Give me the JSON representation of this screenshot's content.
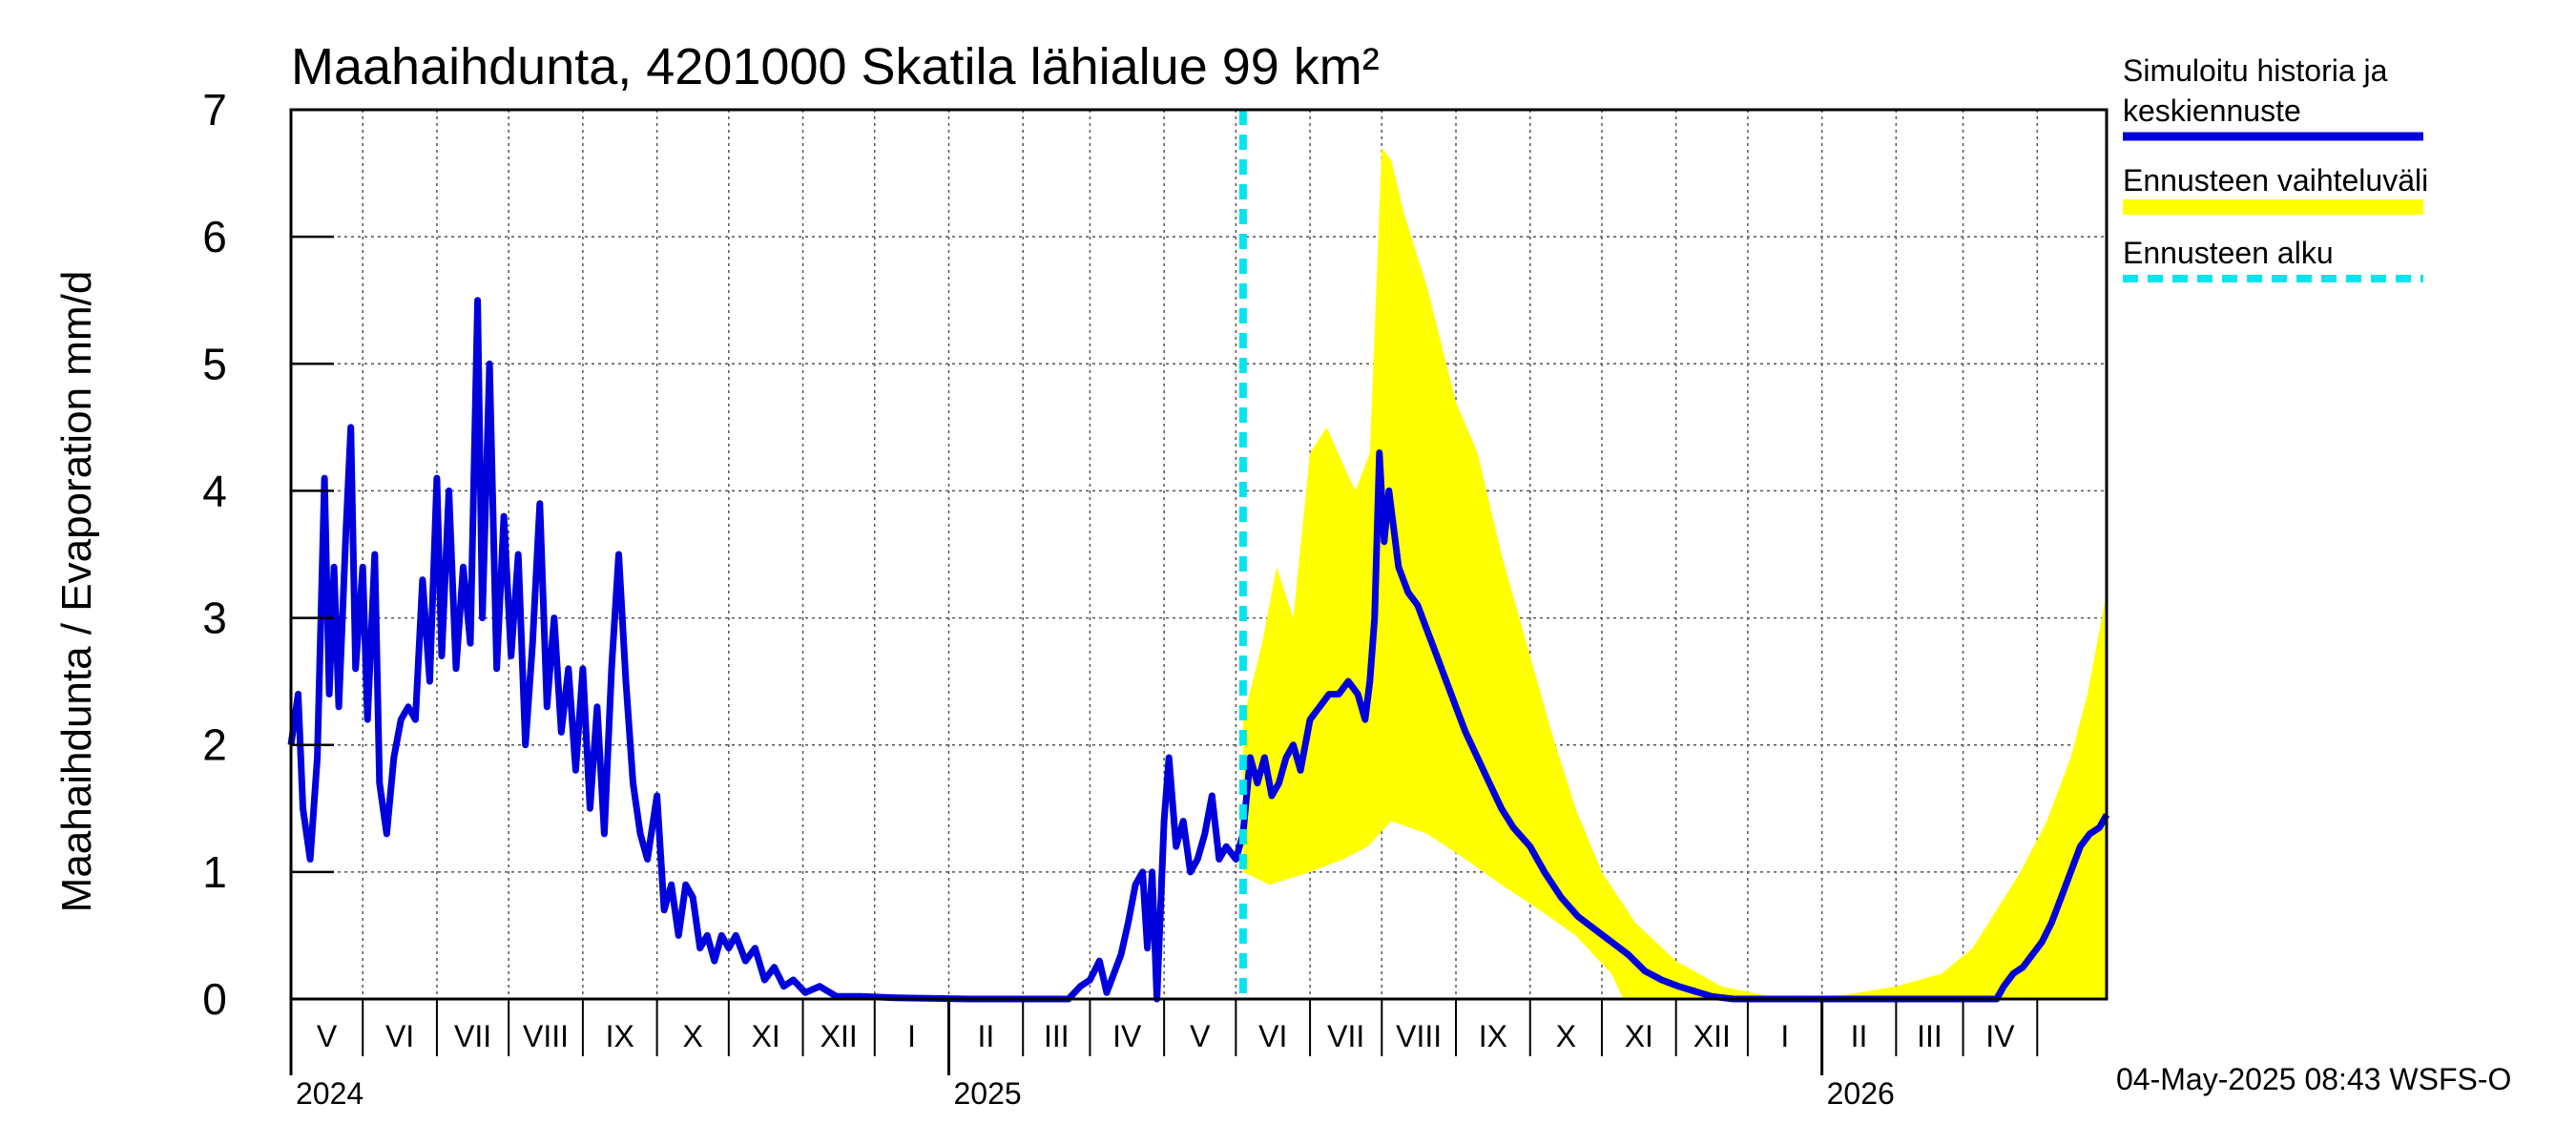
{
  "chart_data": {
    "type": "line",
    "title": "Maahaihdunta, 4201000 Skatila lähialue 99 km²",
    "ylabel": "Maahaihdunta / Evaporation   mm/d",
    "ylim": [
      0,
      7
    ],
    "yticks": [
      "0",
      "1",
      "2",
      "3",
      "4",
      "5",
      "6",
      "7"
    ],
    "x_start": "2024-04-01",
    "x_end": "2026-04-30",
    "months": [
      "V",
      "VI",
      "VII",
      "VIII",
      "IX",
      "X",
      "XI",
      "XII",
      "I",
      "II",
      "III",
      "IV",
      "V",
      "VI",
      "VII",
      "VIII",
      "IX",
      "X",
      "XI",
      "XII",
      "I",
      "II",
      "III",
      "IV"
    ],
    "years": [
      "2024",
      "2025",
      "2026"
    ],
    "forecast_start": "2025-05-04",
    "colors": {
      "history": "#0000dd",
      "band": "#ffff00",
      "forecast_line": "#00e5ee",
      "grid": "#555555"
    },
    "series": [
      {
        "name": "Simuloitu historia ja keskiennuste",
        "points": [
          [
            "2024-04-01",
            2.0
          ],
          [
            "2024-04-04",
            2.4
          ],
          [
            "2024-04-06",
            1.5
          ],
          [
            "2024-04-09",
            1.1
          ],
          [
            "2024-04-12",
            1.9
          ],
          [
            "2024-04-15",
            4.1
          ],
          [
            "2024-04-17",
            2.4
          ],
          [
            "2024-04-19",
            3.4
          ],
          [
            "2024-04-21",
            2.3
          ],
          [
            "2024-04-24",
            3.7
          ],
          [
            "2024-04-26",
            4.5
          ],
          [
            "2024-04-28",
            2.6
          ],
          [
            "2024-05-01",
            3.4
          ],
          [
            "2024-05-03",
            2.2
          ],
          [
            "2024-05-06",
            3.5
          ],
          [
            "2024-05-08",
            1.7
          ],
          [
            "2024-05-11",
            1.3
          ],
          [
            "2024-05-14",
            1.9
          ],
          [
            "2024-05-17",
            2.2
          ],
          [
            "2024-05-20",
            2.3
          ],
          [
            "2024-05-23",
            2.2
          ],
          [
            "2024-05-26",
            3.3
          ],
          [
            "2024-05-29",
            2.5
          ],
          [
            "2024-06-01",
            4.1
          ],
          [
            "2024-06-03",
            2.7
          ],
          [
            "2024-06-06",
            4.0
          ],
          [
            "2024-06-09",
            2.6
          ],
          [
            "2024-06-12",
            3.4
          ],
          [
            "2024-06-15",
            2.8
          ],
          [
            "2024-06-18",
            5.5
          ],
          [
            "2024-06-20",
            3.0
          ],
          [
            "2024-06-23",
            5.0
          ],
          [
            "2024-06-26",
            2.6
          ],
          [
            "2024-06-29",
            3.8
          ],
          [
            "2024-07-02",
            2.7
          ],
          [
            "2024-07-05",
            3.5
          ],
          [
            "2024-07-08",
            2.0
          ],
          [
            "2024-07-11",
            2.8
          ],
          [
            "2024-07-14",
            3.9
          ],
          [
            "2024-07-17",
            2.3
          ],
          [
            "2024-07-20",
            3.0
          ],
          [
            "2024-07-23",
            2.1
          ],
          [
            "2024-07-26",
            2.6
          ],
          [
            "2024-07-29",
            1.8
          ],
          [
            "2024-08-01",
            2.6
          ],
          [
            "2024-08-04",
            1.5
          ],
          [
            "2024-08-07",
            2.3
          ],
          [
            "2024-08-10",
            1.3
          ],
          [
            "2024-08-13",
            2.6
          ],
          [
            "2024-08-16",
            3.5
          ],
          [
            "2024-08-19",
            2.5
          ],
          [
            "2024-08-22",
            1.7
          ],
          [
            "2024-08-25",
            1.3
          ],
          [
            "2024-08-28",
            1.1
          ],
          [
            "2024-09-01",
            1.6
          ],
          [
            "2024-09-04",
            0.7
          ],
          [
            "2024-09-07",
            0.9
          ],
          [
            "2024-09-10",
            0.5
          ],
          [
            "2024-09-13",
            0.9
          ],
          [
            "2024-09-16",
            0.8
          ],
          [
            "2024-09-19",
            0.4
          ],
          [
            "2024-09-22",
            0.5
          ],
          [
            "2024-09-25",
            0.3
          ],
          [
            "2024-09-28",
            0.5
          ],
          [
            "2024-10-01",
            0.4
          ],
          [
            "2024-10-04",
            0.5
          ],
          [
            "2024-10-08",
            0.3
          ],
          [
            "2024-10-12",
            0.4
          ],
          [
            "2024-10-16",
            0.15
          ],
          [
            "2024-10-20",
            0.25
          ],
          [
            "2024-10-24",
            0.1
          ],
          [
            "2024-10-28",
            0.15
          ],
          [
            "2024-11-02",
            0.05
          ],
          [
            "2024-11-08",
            0.1
          ],
          [
            "2024-11-15",
            0.02
          ],
          [
            "2024-11-25",
            0.02
          ],
          [
            "2024-12-10",
            0.01
          ],
          [
            "2025-01-10",
            0.0
          ],
          [
            "2025-02-10",
            0.0
          ],
          [
            "2025-02-20",
            0.0
          ],
          [
            "2025-02-25",
            0.1
          ],
          [
            "2025-03-01",
            0.15
          ],
          [
            "2025-03-05",
            0.3
          ],
          [
            "2025-03-08",
            0.05
          ],
          [
            "2025-03-11",
            0.2
          ],
          [
            "2025-03-14",
            0.35
          ],
          [
            "2025-03-17",
            0.6
          ],
          [
            "2025-03-20",
            0.9
          ],
          [
            "2025-03-23",
            1.0
          ],
          [
            "2025-03-25",
            0.4
          ],
          [
            "2025-03-27",
            1.0
          ],
          [
            "2025-03-29",
            0.0
          ],
          [
            "2025-04-01",
            1.4
          ],
          [
            "2025-04-03",
            1.9
          ],
          [
            "2025-04-06",
            1.2
          ],
          [
            "2025-04-09",
            1.4
          ],
          [
            "2025-04-12",
            1.0
          ],
          [
            "2025-04-15",
            1.1
          ],
          [
            "2025-04-18",
            1.3
          ],
          [
            "2025-04-21",
            1.6
          ],
          [
            "2025-04-24",
            1.1
          ],
          [
            "2025-04-27",
            1.2
          ],
          [
            "2025-05-01",
            1.1
          ],
          [
            "2025-05-04",
            1.3
          ],
          [
            "2025-05-07",
            1.9
          ],
          [
            "2025-05-10",
            1.7
          ],
          [
            "2025-05-13",
            1.9
          ],
          [
            "2025-05-16",
            1.6
          ],
          [
            "2025-05-19",
            1.7
          ],
          [
            "2025-05-22",
            1.9
          ],
          [
            "2025-05-25",
            2.0
          ],
          [
            "2025-05-28",
            1.8
          ],
          [
            "2025-06-01",
            2.2
          ],
          [
            "2025-06-05",
            2.3
          ],
          [
            "2025-06-09",
            2.4
          ],
          [
            "2025-06-13",
            2.4
          ],
          [
            "2025-06-17",
            2.5
          ],
          [
            "2025-06-21",
            2.4
          ],
          [
            "2025-06-24",
            2.2
          ],
          [
            "2025-06-26",
            2.5
          ],
          [
            "2025-06-28",
            3.0
          ],
          [
            "2025-06-30",
            4.3
          ],
          [
            "2025-07-02",
            3.6
          ],
          [
            "2025-07-04",
            4.0
          ],
          [
            "2025-07-08",
            3.4
          ],
          [
            "2025-07-12",
            3.2
          ],
          [
            "2025-07-16",
            3.1
          ],
          [
            "2025-07-20",
            2.9
          ],
          [
            "2025-07-24",
            2.7
          ],
          [
            "2025-07-28",
            2.5
          ],
          [
            "2025-08-01",
            2.3
          ],
          [
            "2025-08-05",
            2.1
          ],
          [
            "2025-08-10",
            1.9
          ],
          [
            "2025-08-15",
            1.7
          ],
          [
            "2025-08-20",
            1.5
          ],
          [
            "2025-08-25",
            1.35
          ],
          [
            "2025-09-01",
            1.2
          ],
          [
            "2025-09-07",
            1.0
          ],
          [
            "2025-09-14",
            0.8
          ],
          [
            "2025-09-21",
            0.65
          ],
          [
            "2025-09-28",
            0.55
          ],
          [
            "2025-10-05",
            0.45
          ],
          [
            "2025-10-12",
            0.35
          ],
          [
            "2025-10-19",
            0.22
          ],
          [
            "2025-10-26",
            0.15
          ],
          [
            "2025-11-02",
            0.1
          ],
          [
            "2025-11-09",
            0.06
          ],
          [
            "2025-11-16",
            0.02
          ],
          [
            "2025-11-25",
            0.0
          ],
          [
            "2026-01-01",
            0.0
          ],
          [
            "2026-02-15",
            0.0
          ],
          [
            "2026-03-15",
            0.0
          ],
          [
            "2026-03-18",
            0.1
          ],
          [
            "2026-03-22",
            0.2
          ],
          [
            "2026-03-26",
            0.25
          ],
          [
            "2026-03-30",
            0.35
          ],
          [
            "2026-04-03",
            0.45
          ],
          [
            "2026-04-07",
            0.6
          ],
          [
            "2026-04-11",
            0.8
          ],
          [
            "2026-04-15",
            1.0
          ],
          [
            "2026-04-19",
            1.2
          ],
          [
            "2026-04-23",
            1.3
          ],
          [
            "2026-04-27",
            1.35
          ],
          [
            "2026-04-30",
            1.45
          ]
        ]
      },
      {
        "name": "Ennusteen vaihteluväli",
        "low_points": [
          [
            "2025-05-04",
            1.0
          ],
          [
            "2025-05-15",
            0.9
          ],
          [
            "2025-06-01",
            1.0
          ],
          [
            "2025-06-15",
            1.1
          ],
          [
            "2025-06-25",
            1.2
          ],
          [
            "2025-07-05",
            1.4
          ],
          [
            "2025-07-20",
            1.3
          ],
          [
            "2025-08-05",
            1.1
          ],
          [
            "2025-08-20",
            0.9
          ],
          [
            "2025-09-05",
            0.7
          ],
          [
            "2025-09-20",
            0.5
          ],
          [
            "2025-10-05",
            0.2
          ],
          [
            "2025-10-10",
            0.0
          ],
          [
            "2026-04-30",
            0.0
          ]
        ],
        "high_points": [
          [
            "2025-05-04",
            2.2
          ],
          [
            "2025-05-12",
            2.8
          ],
          [
            "2025-05-18",
            3.4
          ],
          [
            "2025-05-25",
            3.0
          ],
          [
            "2025-06-01",
            4.3
          ],
          [
            "2025-06-08",
            4.5
          ],
          [
            "2025-06-15",
            4.2
          ],
          [
            "2025-06-20",
            4.0
          ],
          [
            "2025-06-26",
            4.3
          ],
          [
            "2025-07-01",
            6.7
          ],
          [
            "2025-07-05",
            6.6
          ],
          [
            "2025-07-10",
            6.2
          ],
          [
            "2025-07-20",
            5.6
          ],
          [
            "2025-08-01",
            4.7
          ],
          [
            "2025-08-10",
            4.3
          ],
          [
            "2025-08-20",
            3.5
          ],
          [
            "2025-09-01",
            2.7
          ],
          [
            "2025-09-10",
            2.1
          ],
          [
            "2025-09-20",
            1.5
          ],
          [
            "2025-10-01",
            1.0
          ],
          [
            "2025-10-15",
            0.6
          ],
          [
            "2025-11-01",
            0.3
          ],
          [
            "2025-11-20",
            0.1
          ],
          [
            "2025-12-10",
            0.02
          ],
          [
            "2026-01-10",
            0.03
          ],
          [
            "2026-02-01",
            0.1
          ],
          [
            "2026-02-20",
            0.2
          ],
          [
            "2026-03-05",
            0.4
          ],
          [
            "2026-03-15",
            0.7
          ],
          [
            "2026-03-25",
            1.0
          ],
          [
            "2026-04-05",
            1.4
          ],
          [
            "2026-04-15",
            1.9
          ],
          [
            "2026-04-22",
            2.4
          ],
          [
            "2026-04-30",
            3.2
          ]
        ]
      }
    ],
    "legend": [
      {
        "label": "Simuloitu historia ja keskiennuste",
        "line1": "Simuloitu historia ja",
        "line2": "keskiennuste"
      },
      {
        "label": "Ennusteen vaihteluväli"
      },
      {
        "label": "Ennusteen alku"
      }
    ],
    "footer": "04-May-2025 08:43 WSFS-O"
  }
}
